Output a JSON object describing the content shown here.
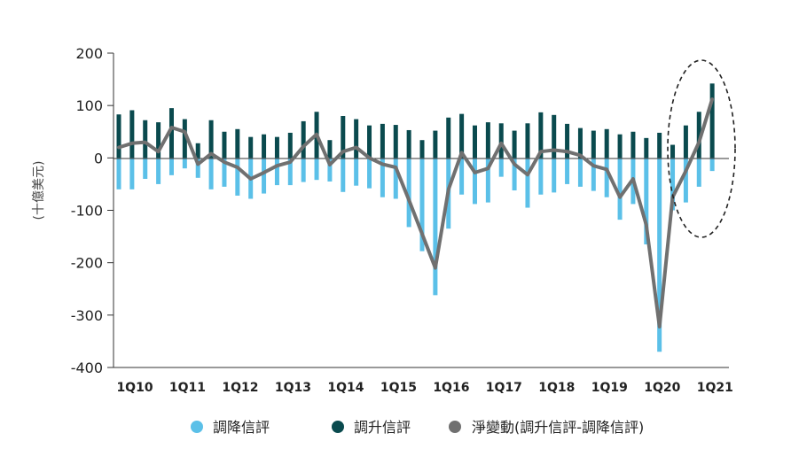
{
  "chart_data": {
    "type": "bar",
    "ylabel": "(十億美元)",
    "ylim": [
      -400,
      200
    ],
    "yticks": [
      200,
      100,
      0,
      -100,
      -200,
      -300,
      -400
    ],
    "xtick_labels": [
      "1Q10",
      "1Q11",
      "1Q12",
      "1Q13",
      "1Q14",
      "1Q15",
      "1Q16",
      "1Q17",
      "1Q18",
      "1Q19",
      "1Q20",
      "1Q21"
    ],
    "categories": [
      "1Q10",
      "2Q10",
      "3Q10",
      "4Q10",
      "1Q11",
      "2Q11",
      "3Q11",
      "4Q11",
      "1Q12",
      "2Q12",
      "3Q12",
      "4Q12",
      "1Q13",
      "2Q13",
      "3Q13",
      "4Q13",
      "1Q14",
      "2Q14",
      "3Q14",
      "4Q14",
      "1Q15",
      "2Q15",
      "3Q15",
      "4Q15",
      "1Q16",
      "2Q16",
      "3Q16",
      "4Q16",
      "1Q17",
      "2Q17",
      "3Q17",
      "4Q17",
      "1Q18",
      "2Q18",
      "3Q18",
      "4Q18",
      "1Q19",
      "2Q19",
      "3Q19",
      "4Q19",
      "1Q20",
      "2Q20",
      "3Q20",
      "4Q20",
      "1Q21",
      "2Q21"
    ],
    "series": [
      {
        "name": "調降信評",
        "kind": "bar",
        "color": "#5bc0e8",
        "values": [
          -60,
          -60,
          -40,
          -50,
          -33,
          -20,
          -38,
          -60,
          -55,
          -72,
          -78,
          -68,
          -52,
          -52,
          -46,
          -42,
          -45,
          -65,
          -53,
          -58,
          -75,
          -78,
          -132,
          -178,
          -262,
          -135,
          -70,
          -88,
          -85,
          -36,
          -62,
          -95,
          -70,
          -66,
          -50,
          -55,
          -63,
          -75,
          -118,
          -88,
          -165,
          -370,
          -100,
          -85,
          -55,
          -25
        ]
      },
      {
        "name": "調升信評",
        "kind": "bar",
        "color": "#0a4a4e",
        "values": [
          83,
          91,
          72,
          68,
          95,
          74,
          28,
          72,
          50,
          55,
          40,
          45,
          40,
          48,
          70,
          88,
          34,
          80,
          74,
          62,
          65,
          63,
          53,
          34,
          52,
          77,
          84,
          62,
          68,
          66,
          52,
          66,
          87,
          82,
          65,
          57,
          52,
          55,
          45,
          50,
          38,
          48,
          25,
          62,
          88,
          142
        ]
      },
      {
        "name": "淨變動(調升信評-調降信評)",
        "kind": "line",
        "color": "#707070",
        "values": [
          20,
          28,
          30,
          12,
          58,
          50,
          -12,
          8,
          -8,
          -18,
          -40,
          -28,
          -15,
          -8,
          22,
          45,
          -13,
          12,
          20,
          0,
          -12,
          -18,
          -80,
          -145,
          -210,
          -60,
          10,
          -28,
          -20,
          28,
          -12,
          -32,
          12,
          15,
          12,
          5,
          -15,
          -22,
          -75,
          -40,
          -128,
          -322,
          -75,
          -25,
          30,
          112
        ]
      }
    ],
    "legend_position": "bottom",
    "grid": false
  }
}
